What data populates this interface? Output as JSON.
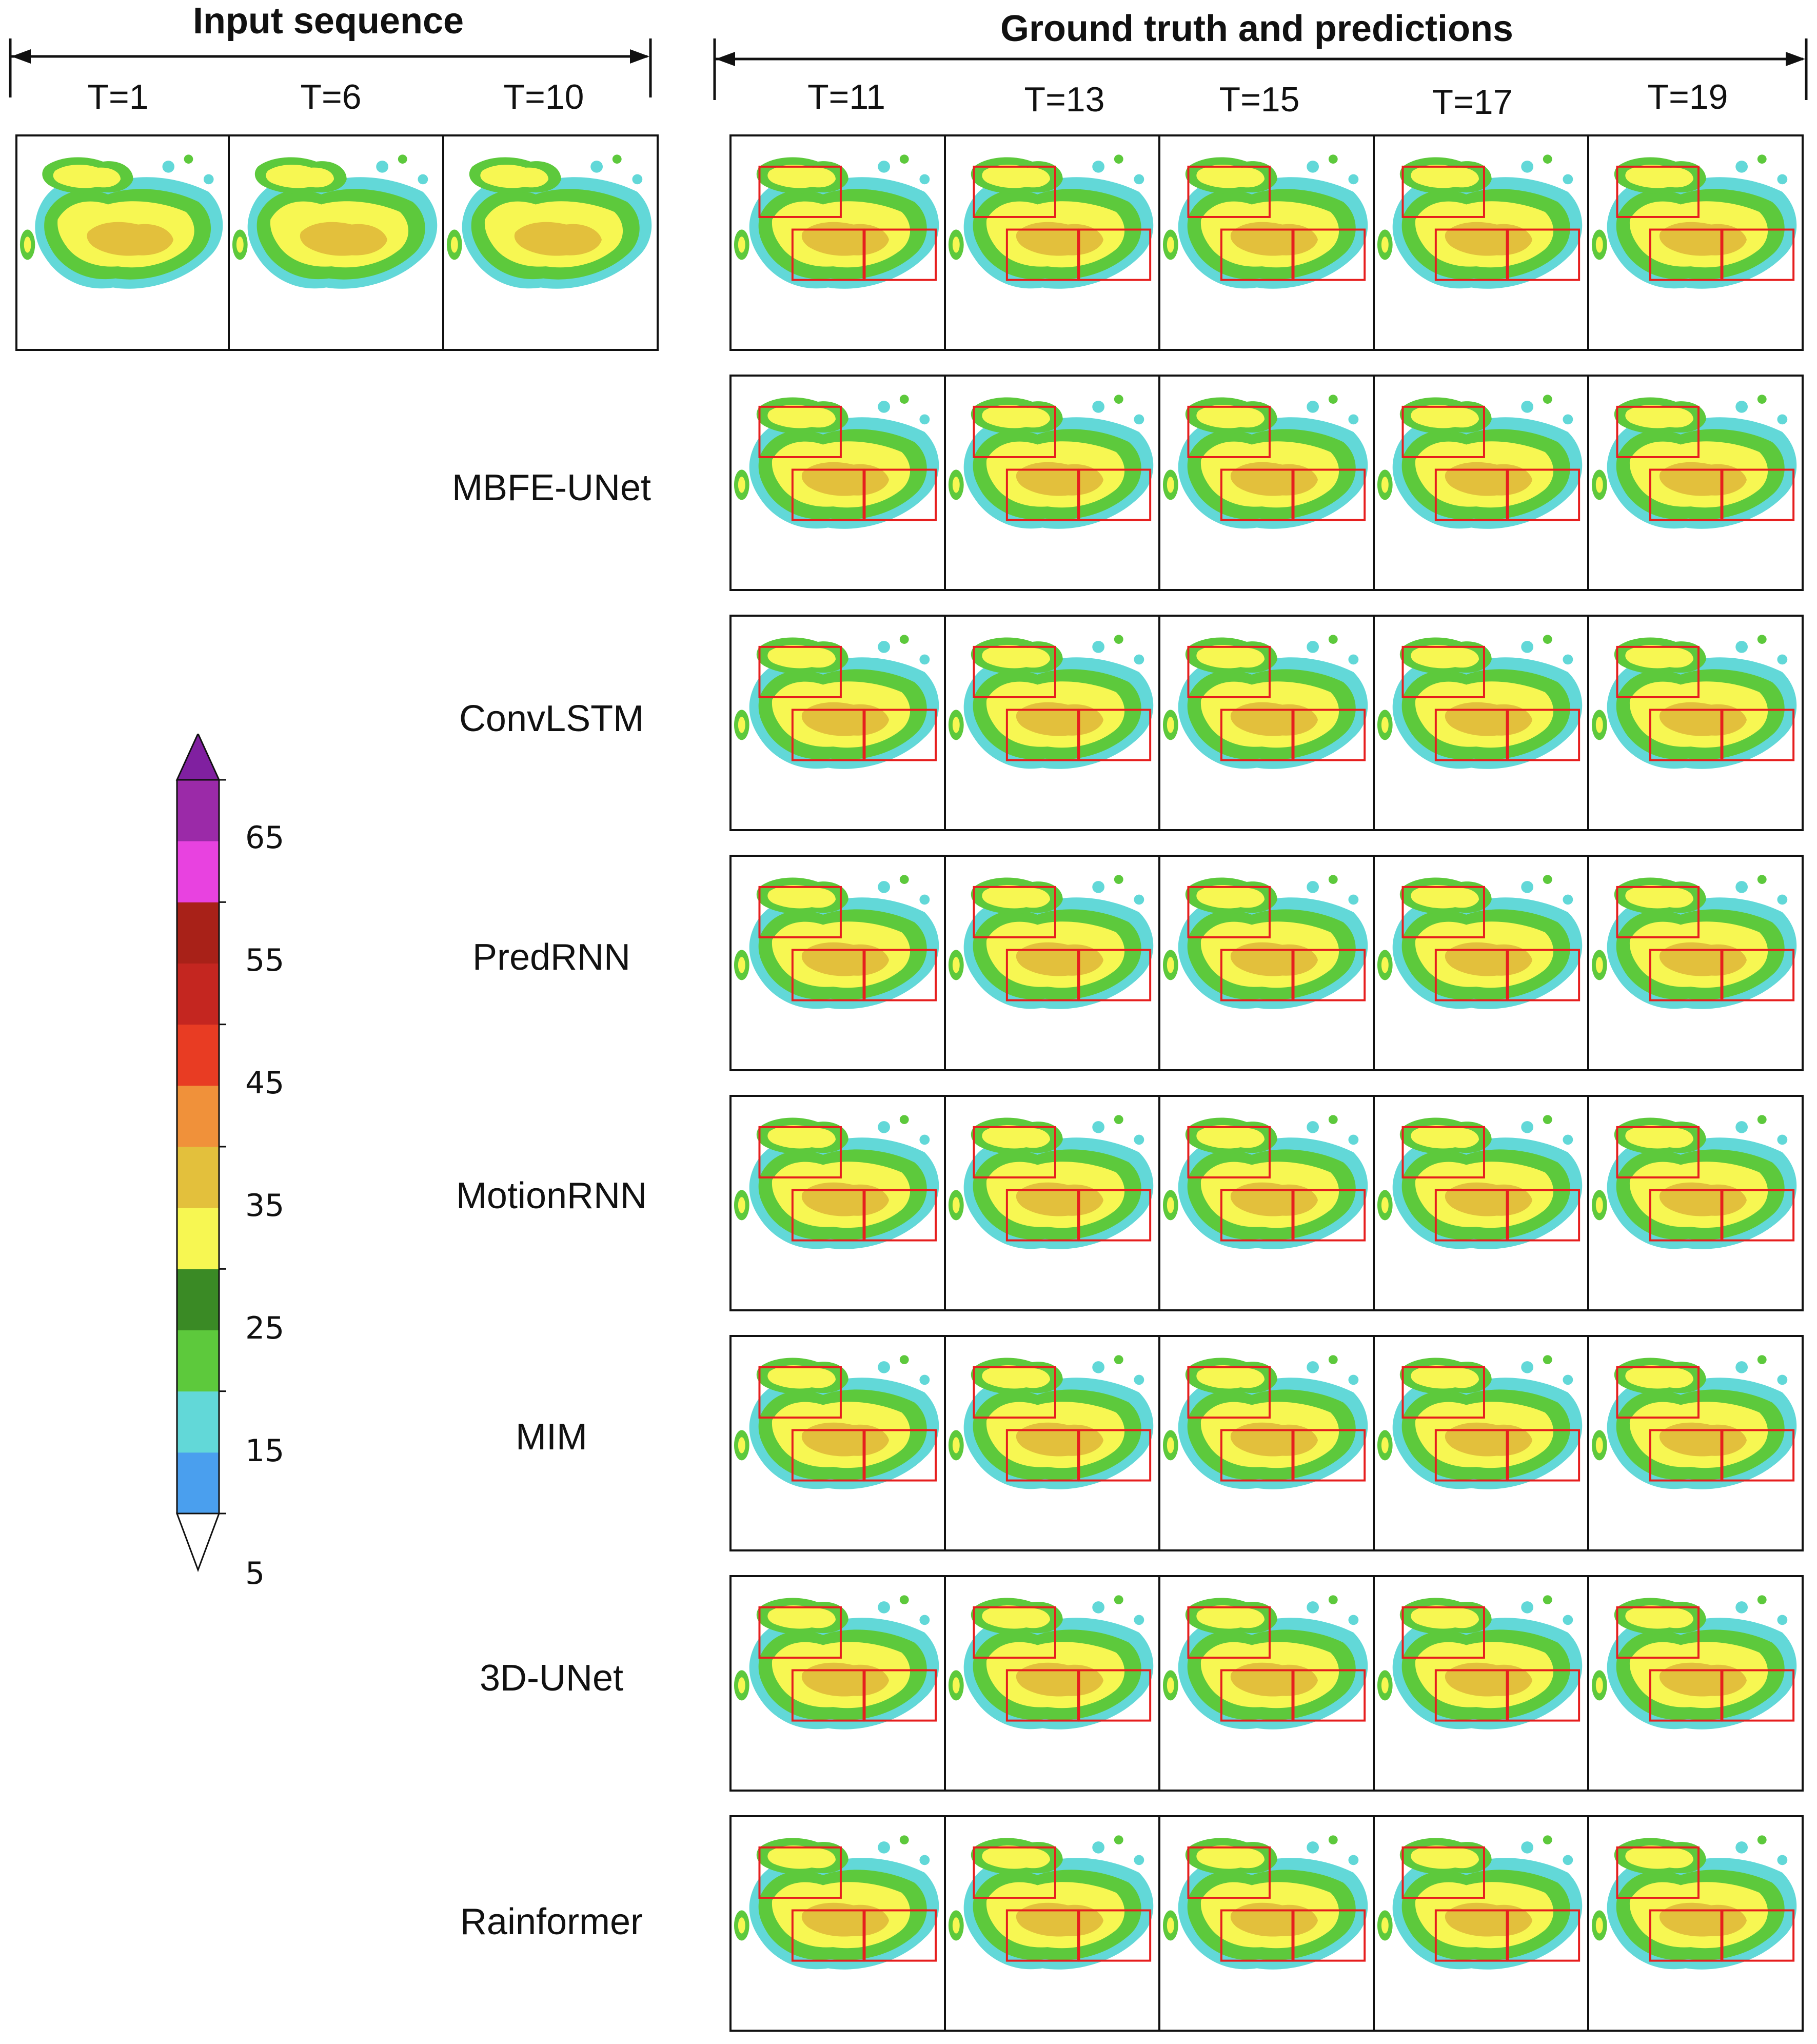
{
  "headers": {
    "input": "Input sequence",
    "output": "Ground truth and predictions"
  },
  "input_times": [
    "T=1",
    "T=6",
    "T=10"
  ],
  "output_times": [
    "T=11",
    "T=13",
    "T=15",
    "T=17",
    "T=19"
  ],
  "methods": [
    "MBFE-UNet",
    "ConvLSTM",
    "PredRNN",
    "MotionRNN",
    "MIM",
    "3D-UNet",
    "Rainformer"
  ],
  "colorbar": {
    "ticks": [
      "65",
      "55",
      "45",
      "35",
      "25",
      "15",
      "5"
    ],
    "colors": [
      "#ffffff",
      "#4a9fee",
      "#62d8d8",
      "#5dc93c",
      "#3a8a25",
      "#f7f752",
      "#e3c03c",
      "#f0913a",
      "#e83c23",
      "#c42620",
      "#a82118",
      "#e842e0",
      "#9b2aa8",
      "#8020a0"
    ]
  }
}
